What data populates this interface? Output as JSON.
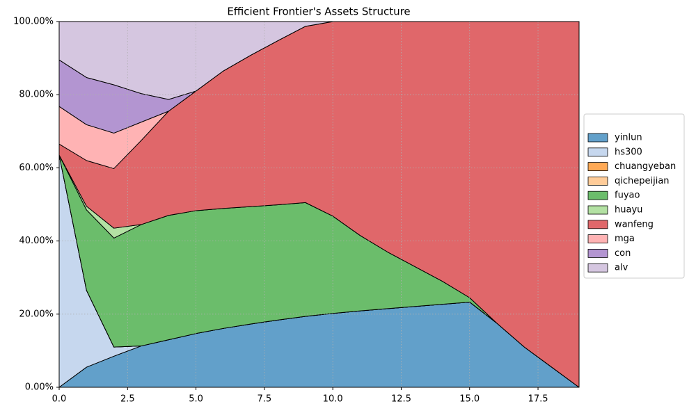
{
  "chart_data": {
    "type": "stacked_area",
    "title": "Efficient Frontier's Assets Structure",
    "x": [
      0,
      1,
      2,
      3,
      4,
      5,
      6,
      7,
      8,
      9,
      10,
      11,
      12,
      13,
      14,
      15,
      16,
      17,
      18,
      19
    ],
    "xlim": [
      0,
      19
    ],
    "ylim": [
      0,
      100
    ],
    "grid": true,
    "legend": "right",
    "xticks": [
      {
        "value": 0,
        "label": "0.0"
      },
      2.5,
      {
        "value": 5,
        "label": "5.0"
      },
      7.5,
      {
        "value": 10,
        "label": "10.0"
      },
      12.5,
      {
        "value": 15,
        "label": "15.0"
      },
      17.5
    ],
    "yticks": [
      {
        "value": 0,
        "label": "0.00%"
      },
      {
        "value": 20,
        "label": "20.00%"
      },
      {
        "value": 40,
        "label": "40.00%"
      },
      {
        "value": 60,
        "label": "60.00%"
      },
      {
        "value": 80,
        "label": "80.00%"
      },
      {
        "value": 100,
        "label": "100.00%"
      }
    ],
    "series": [
      {
        "name": "yinlun",
        "color": "#62a0ca",
        "values": [
          0,
          5.5,
          8.5,
          11.3,
          13,
          14.7,
          16.1,
          17.3,
          18.4,
          19.4,
          20.2,
          20.9,
          21.5,
          22.1,
          22.7,
          23.3,
          17.5,
          11,
          5.5,
          0
        ]
      },
      {
        "name": "hs300",
        "color": "#c6d7ee",
        "values": [
          63.5,
          21,
          2.5,
          0,
          0,
          0,
          0,
          0,
          0,
          0,
          0,
          0,
          0,
          0,
          0,
          0,
          0,
          0,
          0,
          0
        ]
      },
      {
        "name": "chuangyeban",
        "color": "#ffa955",
        "values": [
          0,
          0,
          0,
          0,
          0,
          0,
          0,
          0,
          0,
          0,
          0,
          0,
          0,
          0,
          0,
          0,
          0,
          0,
          0,
          0
        ]
      },
      {
        "name": "qichepeijian",
        "color": "#ffcc99",
        "values": [
          0,
          0,
          0,
          0,
          0,
          0,
          0,
          0,
          0,
          0,
          0,
          0,
          0,
          0,
          0,
          0,
          0,
          0,
          0,
          0
        ]
      },
      {
        "name": "fuyao",
        "color": "#6bbd6b",
        "values": [
          0,
          22,
          29.8,
          33.2,
          34,
          33.6,
          32.8,
          32.1,
          31.5,
          31.1,
          26.6,
          20.6,
          15.5,
          10.9,
          6.3,
          1.2,
          0,
          0,
          0,
          0
        ]
      },
      {
        "name": "huayu",
        "color": "#b3e1a3",
        "values": [
          0,
          1,
          2.7,
          0,
          0,
          0,
          0,
          0,
          0,
          0,
          0,
          0,
          0,
          0,
          0,
          0,
          0,
          0,
          0,
          0
        ]
      },
      {
        "name": "wanfeng",
        "color": "#e0676a",
        "values": [
          3,
          12.5,
          16.3,
          23,
          28.5,
          32.7,
          37.6,
          41.4,
          44.9,
          48.2,
          53.2,
          58.5,
          63,
          67,
          71,
          75.5,
          82.5,
          89,
          94.5,
          100
        ]
      },
      {
        "name": "mga",
        "color": "#ffb3b4",
        "values": [
          10.3,
          9.8,
          9.7,
          5,
          0,
          0,
          0,
          0,
          0,
          0,
          0,
          0,
          0,
          0,
          0,
          0,
          0,
          0,
          0,
          0
        ]
      },
      {
        "name": "con",
        "color": "#b395d1",
        "values": [
          12.7,
          12.9,
          13.2,
          7.8,
          3.2,
          0,
          0,
          0,
          0,
          0,
          0,
          0,
          0,
          0,
          0,
          0,
          0,
          0,
          0,
          0
        ]
      },
      {
        "name": "alv",
        "color": "#d5c6e0",
        "values": [
          10.5,
          15.3,
          17.3,
          19.7,
          21.3,
          19,
          13.5,
          9.2,
          5.2,
          1.3,
          0,
          0,
          0,
          0,
          0,
          0,
          0,
          0,
          0,
          0
        ]
      }
    ]
  }
}
